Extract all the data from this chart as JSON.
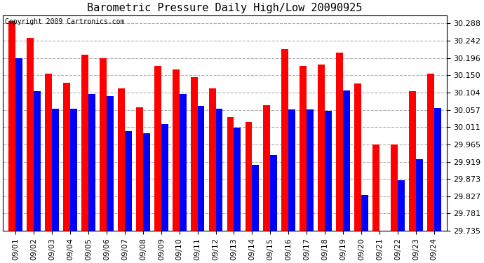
{
  "title": "Barometric Pressure Daily High/Low 20090925",
  "copyright": "Copyright 2009 Cartronics.com",
  "dates": [
    "09/01",
    "09/02",
    "09/03",
    "09/04",
    "09/05",
    "09/06",
    "09/07",
    "09/08",
    "09/09",
    "09/10",
    "09/11",
    "09/12",
    "09/13",
    "09/14",
    "09/15",
    "09/16",
    "09/17",
    "09/18",
    "09/19",
    "09/20",
    "09/21",
    "09/22",
    "09/23",
    "09/24"
  ],
  "highs": [
    30.295,
    30.25,
    30.155,
    30.13,
    30.205,
    30.195,
    30.115,
    30.065,
    30.175,
    30.165,
    30.145,
    30.115,
    30.038,
    30.025,
    30.07,
    30.22,
    30.175,
    30.178,
    30.21,
    30.128,
    29.965,
    29.965,
    30.108,
    30.155
  ],
  "lows": [
    30.195,
    30.108,
    30.06,
    30.06,
    30.1,
    30.095,
    30.0,
    29.995,
    30.02,
    30.1,
    30.068,
    30.06,
    30.01,
    29.91,
    29.938,
    30.058,
    30.058,
    30.055,
    30.11,
    29.83,
    29.735,
    29.87,
    29.925,
    30.062
  ],
  "bar_color_high": "#ff0000",
  "bar_color_low": "#0000ff",
  "background_color": "#ffffff",
  "plot_bg_color": "#ffffff",
  "grid_color": "#b0b0b0",
  "ylim_min": 29.735,
  "ylim_max": 30.31,
  "yticks": [
    30.288,
    30.242,
    30.196,
    30.15,
    30.104,
    30.057,
    30.011,
    29.965,
    29.919,
    29.873,
    29.827,
    29.781,
    29.735
  ],
  "title_fontsize": 11,
  "tick_fontsize": 8,
  "copyright_fontsize": 7
}
